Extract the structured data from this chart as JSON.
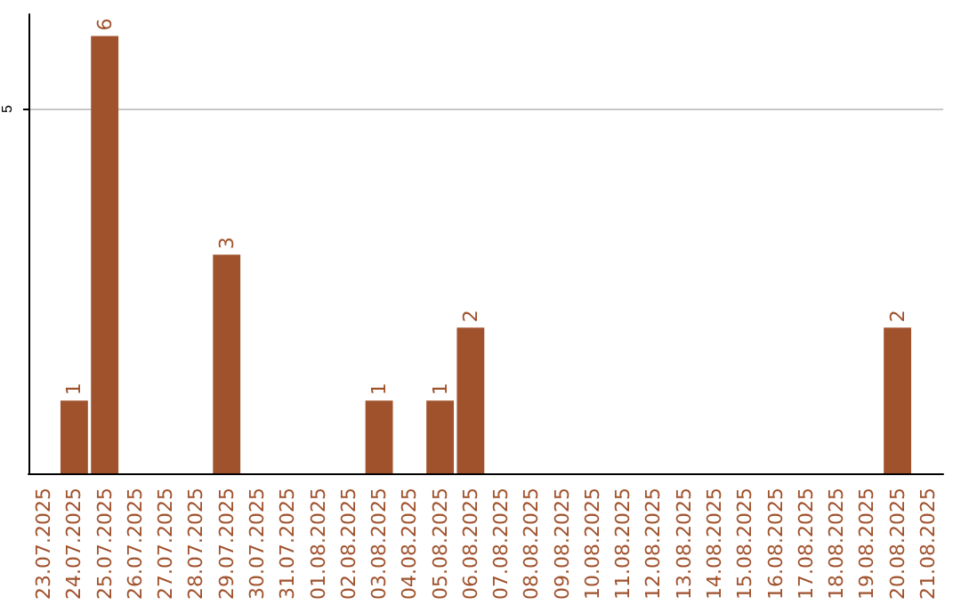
{
  "chart_data": {
    "type": "bar",
    "categories": [
      "23.07.2025",
      "24.07.2025",
      "25.07.2025",
      "26.07.2025",
      "27.07.2025",
      "28.07.2025",
      "29.07.2025",
      "30.07.2025",
      "31.07.2025",
      "01.08.2025",
      "02.08.2025",
      "03.08.2025",
      "04.08.2025",
      "05.08.2025",
      "06.08.2025",
      "07.08.2025",
      "08.08.2025",
      "09.08.2025",
      "10.08.2025",
      "11.08.2025",
      "12.08.2025",
      "13.08.2025",
      "14.08.2025",
      "15.08.2025",
      "16.08.2025",
      "17.08.2025",
      "18.08.2025",
      "19.08.2025",
      "20.08.2025",
      "21.08.2025"
    ],
    "values": [
      null,
      1,
      6,
      null,
      null,
      null,
      3,
      null,
      null,
      null,
      null,
      1,
      null,
      1,
      2,
      null,
      null,
      null,
      null,
      null,
      null,
      null,
      null,
      null,
      null,
      null,
      null,
      null,
      2,
      null
    ],
    "color": "#a0522d",
    "ylim": [
      0,
      6.3
    ],
    "yticks": [
      5
    ],
    "grid": "y",
    "data_labels": true
  }
}
